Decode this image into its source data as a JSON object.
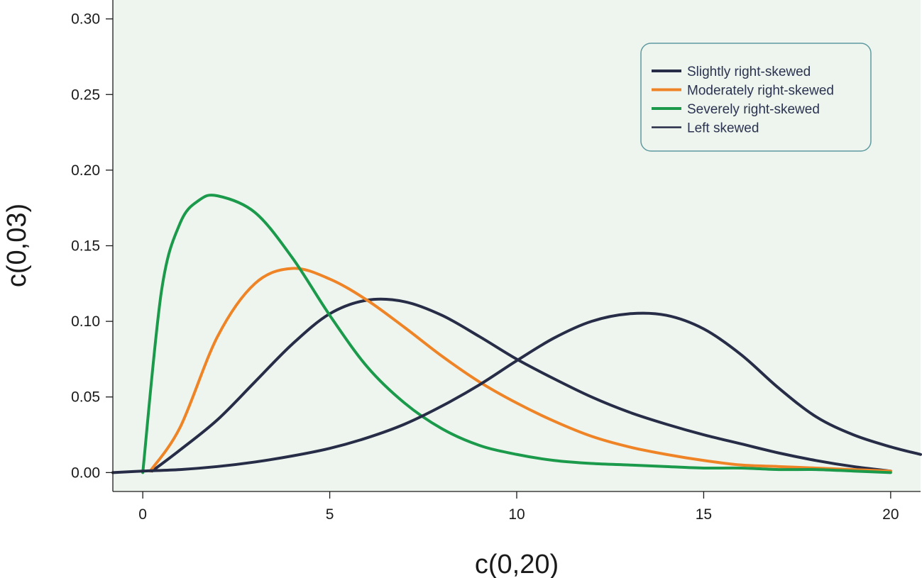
{
  "chart_data": {
    "type": "line",
    "title": "",
    "xlabel": "c(0,20)",
    "ylabel": "c(0,03)",
    "xlim": [
      -0.8,
      20.8
    ],
    "ylim": [
      -0.0125,
      0.3125
    ],
    "xticks": [
      0,
      5,
      10,
      15,
      20
    ],
    "xtick_labels": [
      "0",
      "5",
      "10",
      "15",
      "20"
    ],
    "yticks": [
      0.0,
      0.05,
      0.1,
      0.15,
      0.2,
      0.25,
      0.3
    ],
    "ytick_labels": [
      "0.00",
      "0.05",
      "0.10",
      "0.15",
      "0.20",
      "0.25",
      "0.30"
    ],
    "grid": false,
    "legend_position": "top-right",
    "plot_background": "#eef5ee",
    "series": [
      {
        "name": "Slightly right-skewed",
        "color": "#272c47",
        "x": [
          0.25,
          1,
          2,
          3,
          4,
          5,
          6,
          7,
          8,
          9,
          10,
          11,
          12,
          13,
          14,
          15,
          16,
          17,
          18,
          19,
          20
        ],
        "y": [
          0.001,
          0.015,
          0.035,
          0.06,
          0.085,
          0.105,
          0.114,
          0.113,
          0.104,
          0.09,
          0.075,
          0.062,
          0.05,
          0.04,
          0.032,
          0.025,
          0.019,
          0.013,
          0.008,
          0.004,
          0.001
        ]
      },
      {
        "name": "Moderately right-skewed",
        "color": "#ef8427",
        "x": [
          0.2,
          1,
          2,
          3,
          4,
          5,
          6,
          7,
          8,
          9,
          10,
          11,
          12,
          13,
          14,
          15,
          16,
          17,
          18,
          19,
          20
        ],
        "y": [
          0.001,
          0.03,
          0.09,
          0.125,
          0.135,
          0.128,
          0.114,
          0.096,
          0.077,
          0.06,
          0.046,
          0.034,
          0.024,
          0.017,
          0.012,
          0.008,
          0.005,
          0.004,
          0.003,
          0.002,
          0.001
        ]
      },
      {
        "name": "Severely right-skewed",
        "color": "#1a9a4a",
        "x": [
          0,
          0.5,
          1,
          1.5,
          2,
          3,
          4,
          5,
          6,
          7,
          8,
          9,
          10,
          11,
          12,
          13,
          14,
          15,
          16,
          17,
          18,
          19,
          20
        ],
        "y": [
          0.0,
          0.12,
          0.165,
          0.18,
          0.183,
          0.172,
          0.142,
          0.104,
          0.07,
          0.046,
          0.029,
          0.018,
          0.012,
          0.008,
          0.006,
          0.005,
          0.004,
          0.003,
          0.003,
          0.002,
          0.002,
          0.001,
          0.0
        ]
      },
      {
        "name": "Left skewed",
        "color": "#272c47",
        "x": [
          -0.8,
          0,
          1,
          2,
          3,
          4,
          5,
          6,
          7,
          8,
          9,
          10,
          11,
          12,
          13,
          14,
          15,
          16,
          17,
          18,
          19,
          20,
          20.8
        ],
        "y": [
          0.0,
          0.001,
          0.002,
          0.004,
          0.007,
          0.011,
          0.016,
          0.023,
          0.032,
          0.044,
          0.058,
          0.074,
          0.089,
          0.1,
          0.105,
          0.104,
          0.095,
          0.078,
          0.056,
          0.037,
          0.025,
          0.017,
          0.012
        ]
      }
    ]
  }
}
